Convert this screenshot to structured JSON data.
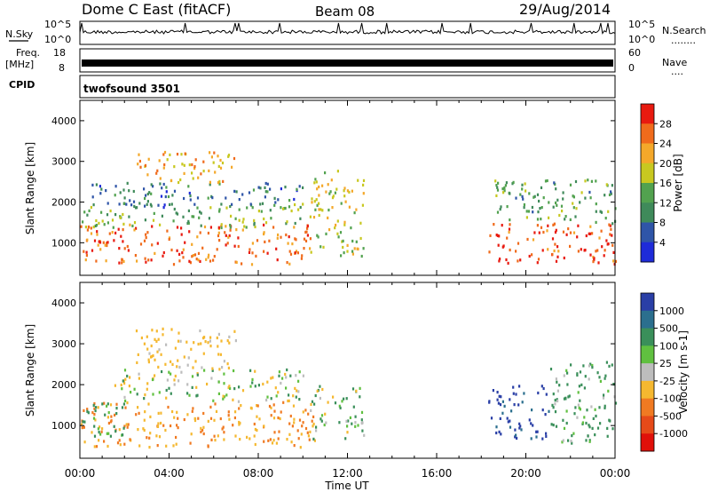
{
  "header": {
    "title": "Dome C East (fitACF)",
    "beam": "Beam 08",
    "date": "29/Aug/2014"
  },
  "noise_panel": {
    "left_label": "N.Sky",
    "left_ticks": [
      "10^5",
      "10^0"
    ],
    "right_ticks": [
      "10^5",
      "10^0"
    ],
    "right_label": "N.Search",
    "right_label_dots": "........"
  },
  "freq_panel": {
    "left_label_top": "Freq.",
    "left_label_unit": "[MHz]",
    "left_ticks": [
      "18",
      "8"
    ],
    "right_ticks": [
      "60",
      "0"
    ],
    "right_label": "Nave",
    "right_label_dots": "...."
  },
  "cpid": {
    "label": "CPID",
    "program": "twofsound 3501"
  },
  "colors": {
    "power_scale": [
      "#1e2bd9",
      "#2f55a8",
      "#3f8a5a",
      "#52a24f",
      "#c8c820",
      "#f4a82a",
      "#f06b1c",
      "#e81a10"
    ],
    "velocity_scale": [
      "#2a3fa6",
      "#2b6f8e",
      "#3a8f5a",
      "#60c040",
      "#bdbdbd",
      "#f5b830",
      "#f07a22",
      "#e64a19",
      "#e0100a"
    ]
  },
  "chart_data": [
    {
      "type": "heatmap",
      "panel": "power",
      "ylabel": "Slant Range [km]",
      "yticks": [
        "1000",
        "2000",
        "3000",
        "4000"
      ],
      "ylim": [
        200,
        4500
      ],
      "xticks": [
        "00:00",
        "04:00",
        "08:00",
        "12:00",
        "16:00",
        "20:00",
        "00:00"
      ],
      "colorbar_label": "Power [dB]",
      "colorbar_ticks": [
        "4",
        "8",
        "12",
        "16",
        "20",
        "24",
        "28"
      ],
      "clim": [
        0,
        32
      ],
      "blobs": [
        {
          "t0": 0.0,
          "t1": 10.5,
          "r0": 500,
          "r1": 1500,
          "level": 26
        },
        {
          "t0": 0.0,
          "t1": 10.0,
          "r0": 1400,
          "r1": 2000,
          "level": 14
        },
        {
          "t0": 0.5,
          "t1": 10.0,
          "r0": 1900,
          "r1": 2500,
          "level": 8
        },
        {
          "t0": 2.5,
          "t1": 7.0,
          "r0": 2500,
          "r1": 3300,
          "level": 22
        },
        {
          "t0": 10.3,
          "t1": 12.7,
          "r0": 700,
          "r1": 2800,
          "level": 18
        },
        {
          "t0": 18.3,
          "t1": 24.0,
          "r0": 500,
          "r1": 1500,
          "level": 28
        },
        {
          "t0": 18.5,
          "t1": 24.0,
          "r0": 1500,
          "r1": 2600,
          "level": 12
        }
      ]
    },
    {
      "type": "heatmap",
      "panel": "velocity",
      "ylabel": "Slant Range [km]",
      "yticks": [
        "1000",
        "2000",
        "3000",
        "4000"
      ],
      "ylim": [
        200,
        4500
      ],
      "xticks": [
        "00:00",
        "04:00",
        "08:00",
        "12:00",
        "16:00",
        "20:00",
        "00:00"
      ],
      "xlabel": "Time UT",
      "colorbar_label": "Velocity [m s-1]",
      "colorbar_ticks": [
        "1000",
        "500",
        "100",
        "25",
        "-25",
        "-100",
        "-500",
        "-1000"
      ],
      "blobs": [
        {
          "t0": 0.0,
          "t1": 10.5,
          "r0": 500,
          "r1": 1600,
          "level": -300
        },
        {
          "t0": 0.0,
          "t1": 2.0,
          "r0": 700,
          "r1": 1600,
          "level": 150
        },
        {
          "t0": 1.5,
          "t1": 10.0,
          "r0": 1600,
          "r1": 2400,
          "level": 0
        },
        {
          "t0": 2.5,
          "t1": 7.0,
          "r0": 2400,
          "r1": 3400,
          "level": -150
        },
        {
          "t0": 10.3,
          "t1": 12.7,
          "r0": 700,
          "r1": 2000,
          "level": 60
        },
        {
          "t0": 18.3,
          "t1": 21.0,
          "r0": 700,
          "r1": 2000,
          "level": 800
        },
        {
          "t0": 21.0,
          "t1": 24.0,
          "r0": 600,
          "r1": 2600,
          "level": 120
        }
      ]
    }
  ]
}
